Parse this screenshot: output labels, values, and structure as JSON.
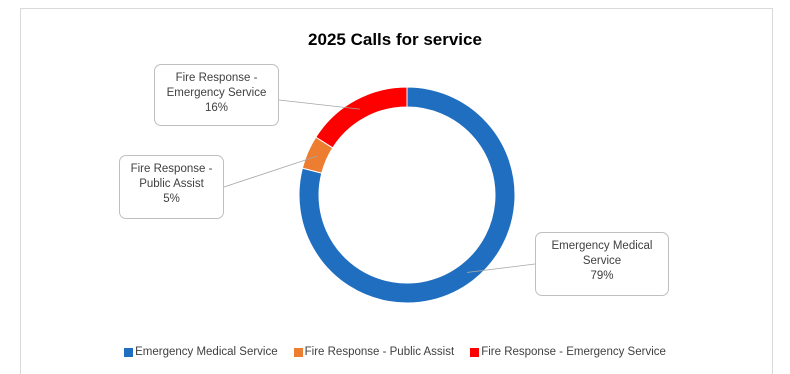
{
  "chart_data": {
    "type": "pie",
    "title": "2025 Calls for service",
    "slices": [
      {
        "name": "Emergency Medical Service",
        "value": 79,
        "label_lines": [
          "Emergency Medical",
          "Service",
          "79%"
        ],
        "color": "#1f6ebf"
      },
      {
        "name": "Fire Response - Public Assist",
        "value": 5,
        "label_lines": [
          "Fire Response -",
          "Public Assist",
          "5%"
        ],
        "color": "#ed7d31"
      },
      {
        "name": "Fire Response - Emergency Service",
        "value": 16,
        "label_lines": [
          "Fire Response -",
          "Emergency Service",
          "16%"
        ],
        "color": "#ff0000"
      }
    ],
    "donut": true,
    "legend_position": "bottom"
  }
}
